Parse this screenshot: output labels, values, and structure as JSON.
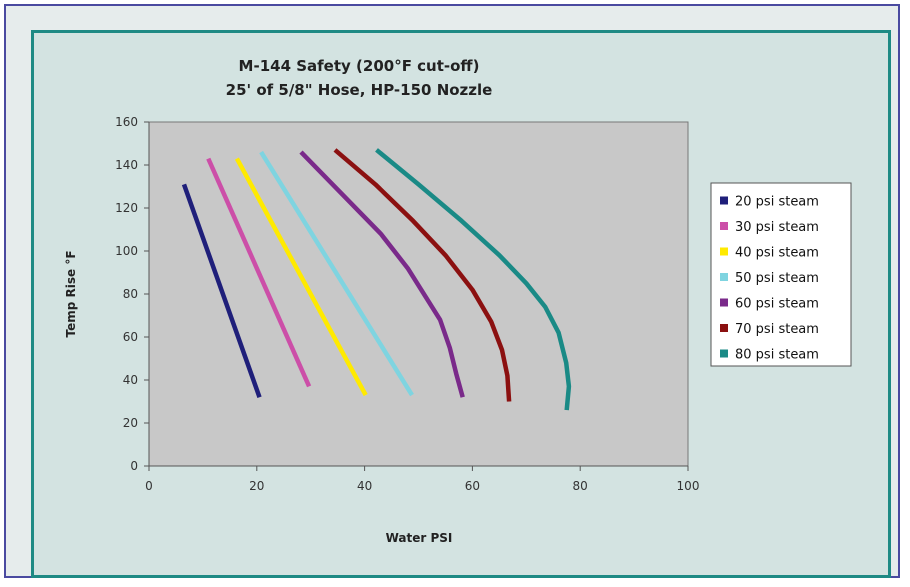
{
  "chart_data": {
    "type": "line",
    "title": "M-144 Safety (200°F cut-off)",
    "subtitle": "25' of 5/8\" Hose, HP-150 Nozzle",
    "xlabel": "Water PSI",
    "ylabel": "Temp Rise °F",
    "xlim": [
      0,
      100
    ],
    "ylim": [
      0,
      160
    ],
    "x_ticks": [
      "0",
      "20",
      "40",
      "60",
      "80",
      "100"
    ],
    "y_ticks": [
      "0",
      "20",
      "40",
      "60",
      "80",
      "100",
      "120",
      "140",
      "160"
    ],
    "grid": false,
    "legend_position": "right",
    "series": [
      {
        "name": "20 psi steam",
        "color": "#1f1f7a",
        "points": [
          [
            6.5,
            131
          ],
          [
            20.5,
            32
          ]
        ]
      },
      {
        "name": "30 psi steam",
        "color": "#cc4fa8",
        "points": [
          [
            11,
            143
          ],
          [
            29.7,
            37
          ]
        ]
      },
      {
        "name": "40 psi steam",
        "color": "#ffea00",
        "points": [
          [
            16.3,
            143
          ],
          [
            40.2,
            33
          ]
        ]
      },
      {
        "name": "50 psi steam",
        "color": "#7fd4e0",
        "points": [
          [
            20.8,
            146
          ],
          [
            48.8,
            33
          ]
        ]
      },
      {
        "name": "60 psi steam",
        "color": "#7a2a8a",
        "points": [
          [
            28.2,
            146
          ],
          [
            36,
            126
          ],
          [
            43,
            108
          ],
          [
            48,
            92
          ],
          [
            51.5,
            78
          ],
          [
            54,
            68
          ],
          [
            55.8,
            55
          ],
          [
            57,
            43
          ],
          [
            58.2,
            32
          ]
        ]
      },
      {
        "name": "70 psi steam",
        "color": "#8b1010",
        "points": [
          [
            34.5,
            147
          ],
          [
            42,
            131
          ],
          [
            49,
            114
          ],
          [
            55,
            98
          ],
          [
            60,
            82
          ],
          [
            63.5,
            67
          ],
          [
            65.5,
            54
          ],
          [
            66.5,
            42
          ],
          [
            66.8,
            30
          ]
        ]
      },
      {
        "name": "80 psi steam",
        "color": "#1a8a86",
        "points": [
          [
            42.2,
            147
          ],
          [
            50,
            131
          ],
          [
            58,
            114
          ],
          [
            65,
            98
          ],
          [
            70,
            85
          ],
          [
            73.5,
            74
          ],
          [
            76,
            62
          ],
          [
            77.4,
            48
          ],
          [
            77.9,
            37
          ],
          [
            77.5,
            26
          ]
        ]
      }
    ]
  }
}
